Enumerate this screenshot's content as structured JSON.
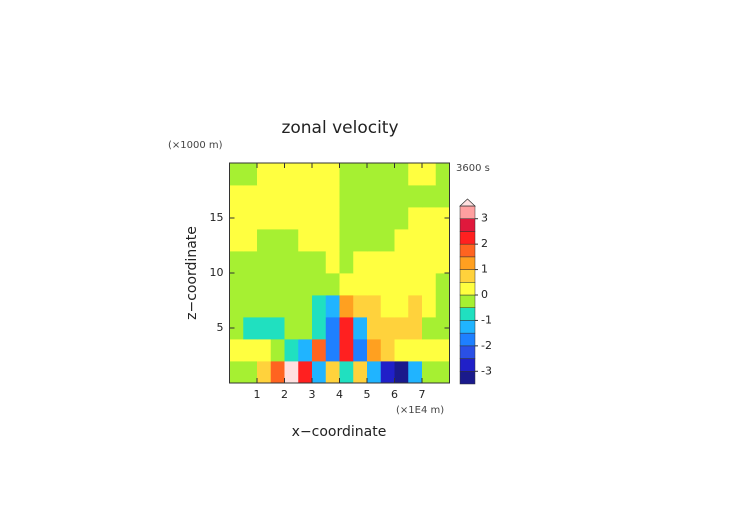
{
  "chart_data": {
    "type": "contour",
    "title": "zonal velocity",
    "time_label": "3600 s",
    "xlabel": "x−coordinate",
    "ylabel": "z−coordinate",
    "x_unit": "(×1E4 m)",
    "y_unit": "(×1000 m)",
    "xlim": [
      0,
      8
    ],
    "ylim": [
      0,
      20
    ],
    "xticks": [
      1,
      2,
      3,
      4,
      5,
      6,
      7
    ],
    "yticks": [
      5,
      10,
      15
    ],
    "levels": [
      -3.5,
      -3,
      -2.5,
      -2,
      -1.5,
      -1,
      -0.5,
      0,
      0.5,
      1,
      1.5,
      2,
      2.5,
      3,
      3.5
    ],
    "colors": [
      "#1a1a8c",
      "#2020c8",
      "#2a50e6",
      "#1e80ff",
      "#20b4ff",
      "#20e0c0",
      "#a6f032",
      "#ffff40",
      "#ffd23c",
      "#ffa020",
      "#ff6420",
      "#ff2020",
      "#e0183c",
      "#ffa0a0"
    ],
    "over_color": "#ffe0e0",
    "colorbar_ticks": [
      -3,
      -2,
      -1,
      0,
      1,
      2,
      3
    ],
    "z": [
      [
        -0.2,
        -0.2,
        0.7,
        1.7,
        3.7,
        2.2,
        -1.2,
        0.7,
        -0.7,
        0.7,
        -1.2,
        -2.7,
        -3.2,
        -1.2,
        -0.2,
        -0.2
      ],
      [
        0.2,
        0.2,
        0.2,
        -0.2,
        -0.7,
        -1.2,
        1.7,
        -1.7,
        2.2,
        -1.7,
        1.2,
        0.7,
        0.2,
        0.2,
        0.2,
        0.2
      ],
      [
        -0.2,
        -0.7,
        -0.7,
        -0.7,
        -0.2,
        -0.2,
        -0.7,
        -1.7,
        2.2,
        -1.2,
        0.7,
        0.7,
        0.7,
        0.7,
        -0.2,
        -0.2
      ],
      [
        -0.2,
        -0.2,
        -0.2,
        -0.2,
        -0.2,
        -0.2,
        -0.7,
        -1.2,
        1.2,
        0.7,
        0.7,
        0.2,
        0.2,
        0.7,
        0.2,
        -0.2
      ],
      [
        -0.2,
        -0.2,
        -0.2,
        -0.2,
        -0.2,
        -0.2,
        -0.2,
        -0.2,
        0.2,
        0.2,
        0.2,
        0.2,
        0.2,
        0.2,
        0.2,
        -0.2
      ],
      [
        -0.2,
        -0.2,
        -0.2,
        -0.2,
        -0.2,
        -0.2,
        -0.2,
        0.2,
        -0.2,
        0.2,
        0.2,
        0.2,
        0.2,
        0.2,
        0.2,
        0.2
      ],
      [
        0.2,
        0.2,
        -0.2,
        -0.2,
        -0.2,
        0.2,
        0.2,
        0.2,
        -0.2,
        -0.2,
        -0.2,
        -0.2,
        0.2,
        0.2,
        0.2,
        0.2
      ],
      [
        0.2,
        0.2,
        0.2,
        0.2,
        0.2,
        0.2,
        0.2,
        0.2,
        -0.2,
        -0.2,
        -0.2,
        -0.2,
        -0.2,
        0.2,
        0.2,
        0.2
      ],
      [
        0.2,
        0.2,
        0.2,
        0.2,
        0.2,
        0.2,
        0.2,
        0.2,
        -0.2,
        -0.2,
        -0.2,
        -0.2,
        -0.2,
        -0.2,
        -0.2,
        -0.2
      ],
      [
        -0.2,
        -0.2,
        0.2,
        0.2,
        0.2,
        0.2,
        0.2,
        0.2,
        -0.2,
        -0.2,
        -0.2,
        -0.2,
        -0.2,
        0.2,
        0.2,
        -0.2
      ]
    ]
  }
}
